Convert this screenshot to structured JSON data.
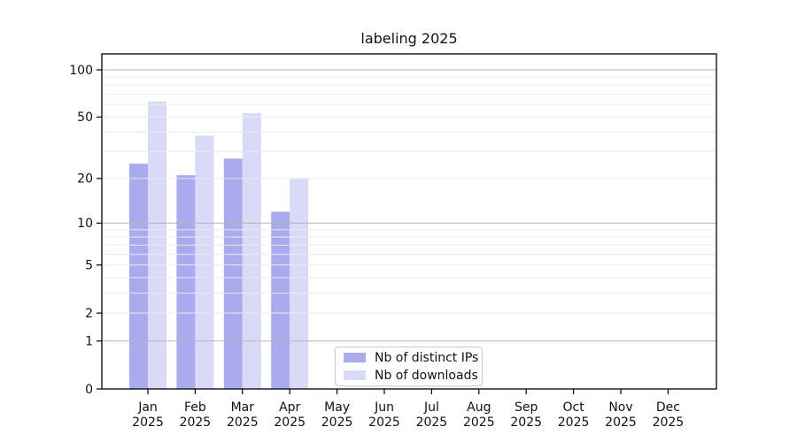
{
  "chart_data": {
    "type": "bar",
    "title": "labeling 2025",
    "year_label": "2025",
    "categories": [
      "Jan",
      "Feb",
      "Mar",
      "Apr",
      "May",
      "Jun",
      "Jul",
      "Aug",
      "Sep",
      "Oct",
      "Nov",
      "Dec"
    ],
    "series": [
      {
        "name": "Nb of distinct IPs",
        "color": "#aaaaee",
        "values": [
          25,
          21,
          27,
          12,
          null,
          null,
          null,
          null,
          null,
          null,
          null,
          null
        ]
      },
      {
        "name": "Nb of downloads",
        "color": "#d9d9f8",
        "values": [
          63,
          38,
          53,
          20,
          null,
          null,
          null,
          null,
          null,
          null,
          null,
          null
        ]
      }
    ],
    "yscale": "log1p",
    "ylim": [
      0,
      126
    ],
    "yticks": [
      0,
      1,
      2,
      5,
      10,
      20,
      50,
      100
    ],
    "grid_major": [
      1,
      10,
      100
    ],
    "grid_minor": [
      2,
      3,
      4,
      6,
      7,
      8,
      9,
      20,
      30,
      40,
      60,
      70,
      80,
      90,
      5,
      50
    ],
    "grid": "on",
    "legend_position": "bottom-center",
    "xlabel": "",
    "ylabel": ""
  },
  "legend": {
    "items": [
      {
        "label": "Nb of distinct IPs"
      },
      {
        "label": "Nb of downloads"
      }
    ]
  }
}
